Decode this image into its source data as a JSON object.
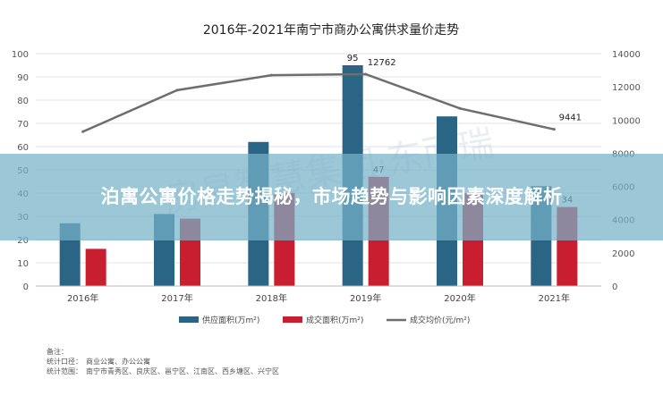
{
  "banner": {
    "title": "泊寓公寓价格走势揭秘，市场趋势与影响因素深度解析"
  },
  "notes": {
    "remark": "备注：",
    "scope": "统计口径：　商业公寓、办公公寓",
    "districts": "统计范围：　南宁市青秀区、良庆区、邕宁区、江南区、西乡塘区、兴宁区"
  },
  "watermark": "房易智慧集团·东而瑞",
  "chart_data": {
    "type": "bar",
    "title": "2016年-2021年南宁市商办公寓供求量价走势",
    "categories": [
      "2016年",
      "2017年",
      "2018年",
      "2019年",
      "2020年",
      "2021年"
    ],
    "series": [
      {
        "name": "供应面积(万m²)",
        "kind": "bar",
        "axis": "left",
        "color": "#2a6585",
        "values": [
          27,
          31,
          62,
          95,
          73,
          43
        ]
      },
      {
        "name": "成交面积(万m²)",
        "kind": "bar",
        "axis": "left",
        "color": "#c81e30",
        "values": [
          16,
          29,
          40,
          47,
          40,
          34
        ]
      },
      {
        "name": "成交均价(元/m²)",
        "kind": "line",
        "axis": "right",
        "color": "#6e6e6e",
        "values": [
          9300,
          11800,
          12700,
          12762,
          10700,
          9441
        ]
      }
    ],
    "data_labels": [
      {
        "series": 0,
        "index": 3,
        "text": "95"
      },
      {
        "series": 1,
        "index": 3,
        "text": "47"
      },
      {
        "series": 1,
        "index": 5,
        "text": "34"
      },
      {
        "series": 2,
        "index": 3,
        "text": "12762"
      },
      {
        "series": 2,
        "index": 5,
        "text": "9441"
      }
    ],
    "y_left": {
      "ticks": [
        0,
        10,
        20,
        30,
        40,
        50,
        60,
        70,
        80,
        90,
        100
      ],
      "lim": [
        0,
        100
      ]
    },
    "y_right": {
      "ticks": [
        0,
        2000,
        4000,
        6000,
        8000,
        10000,
        12000,
        14000
      ],
      "lim": [
        0,
        14000
      ]
    },
    "grid": true,
    "legend_position": "bottom"
  }
}
